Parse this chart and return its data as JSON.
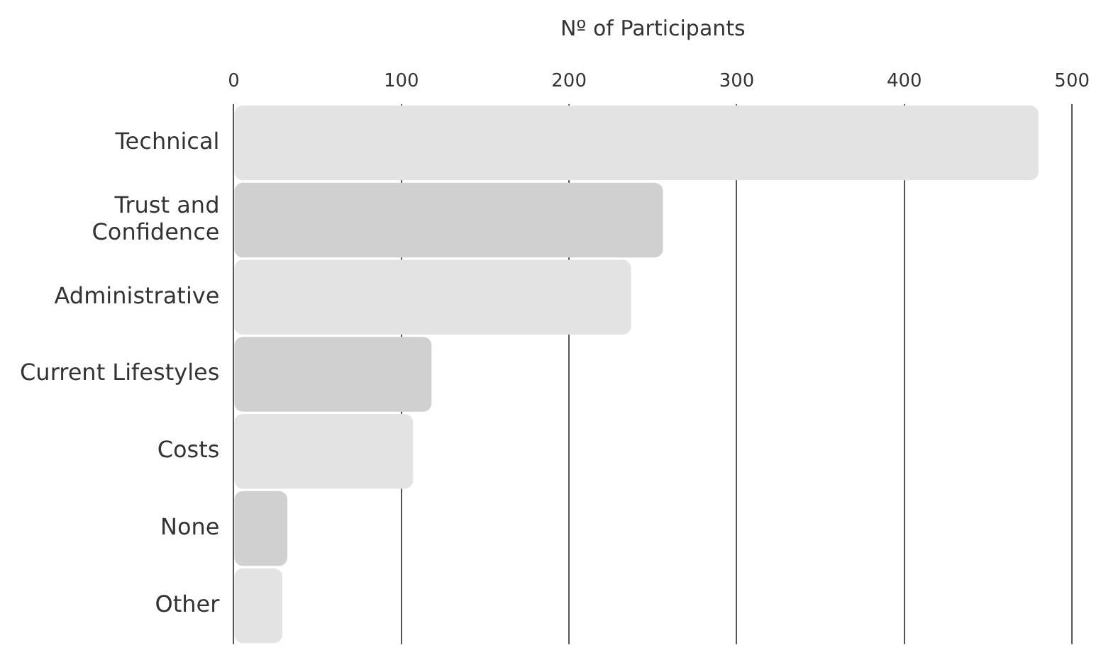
{
  "chart_data": {
    "type": "bar",
    "orientation": "horizontal",
    "xlabel": "Nº of Participants",
    "categories": [
      "Technical",
      "Trust and Confidence",
      "Administrative",
      "Current Lifestyles",
      "Costs",
      "None",
      "Other"
    ],
    "values": [
      480,
      256,
      237,
      118,
      107,
      32,
      29
    ],
    "colors": [
      "#e3e3e3",
      "#d0d0d0",
      "#e3e3e3",
      "#d0d0d0",
      "#e3e3e3",
      "#d0d0d0",
      "#e3e3e3"
    ],
    "xlim": [
      0,
      500
    ],
    "xticks": [
      0,
      100,
      200,
      300,
      400,
      500
    ],
    "grid": "x",
    "legend": false
  }
}
